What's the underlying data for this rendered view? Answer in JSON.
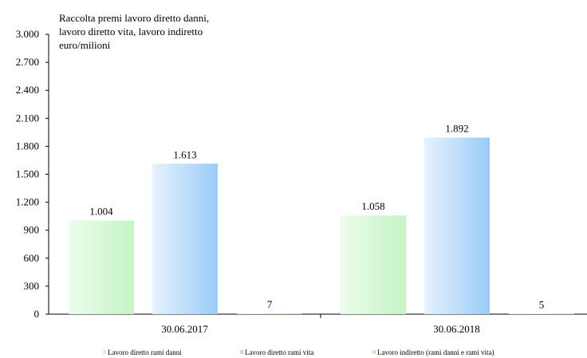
{
  "chart_data": {
    "type": "bar",
    "title": "Raccolta premi lavoro diretto danni,\nlavoro diretto vita, lavoro indiretto\neuro/milioni",
    "categories": [
      "30.06.2017",
      "30.06.2018"
    ],
    "series": [
      {
        "name": "Lavoro diretto rami danni",
        "values": [
          1004,
          1058
        ],
        "labels": [
          "1.004",
          "1.058"
        ],
        "color_light": "#ecfcec",
        "color_dark": "#c4f5c4"
      },
      {
        "name": "Lavoro diretto rami vita",
        "values": [
          1613,
          1892
        ],
        "labels": [
          "1.613",
          "1.892"
        ],
        "color_light": "#e6f2fd",
        "color_dark": "#9acbf7"
      },
      {
        "name": "Lavoro indiretto (rami danni e rami vita)",
        "values": [
          7,
          5
        ],
        "labels": [
          "7",
          "5"
        ],
        "color_light": "#fdf1e3",
        "color_dark": "#f6c99a"
      }
    ],
    "ylim": [
      0,
      3000
    ],
    "yticks": [
      0,
      300,
      600,
      900,
      1200,
      1500,
      1800,
      2100,
      2400,
      2700,
      3000
    ],
    "ytick_labels": [
      "0",
      "300",
      "600",
      "900",
      "1.200",
      "1.500",
      "1.800",
      "2.100",
      "2.400",
      "2.700",
      "3.000"
    ],
    "legend_position": "bottom",
    "grid": false
  }
}
